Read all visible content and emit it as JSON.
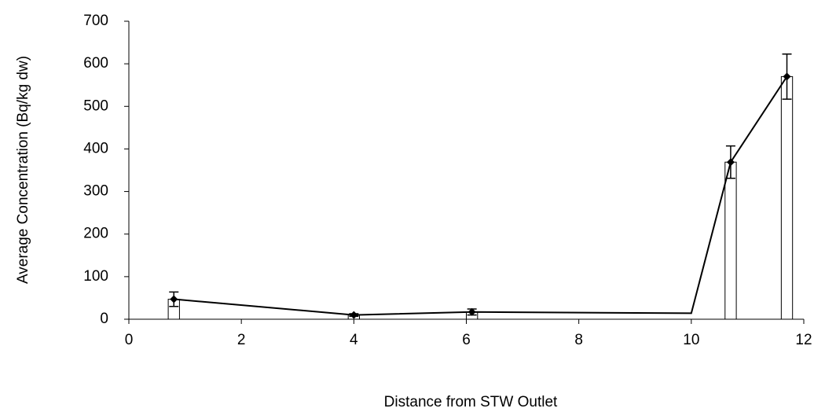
{
  "chart_data": {
    "type": "bar-line",
    "x_label": "Distance from STW Outlet",
    "y_label": "Average Concentration (Bq/kg dw)",
    "xlim": [
      0,
      12
    ],
    "xticks": [
      0,
      2,
      4,
      6,
      8,
      10,
      12
    ],
    "ylim": [
      0,
      700
    ],
    "yticks": [
      0,
      100,
      200,
      300,
      400,
      500,
      600,
      700
    ],
    "bar_width": 0.2,
    "series": [
      {
        "kind": "bar",
        "color": "#ffffff",
        "x": [
          0.8,
          4.0,
          6.1,
          10.7,
          11.7
        ],
        "values": [
          47,
          10,
          17,
          369,
          570
        ],
        "errors": [
          17,
          3,
          7,
          38,
          53
        ]
      },
      {
        "kind": "line",
        "color": "#000000",
        "x": [
          0.8,
          4.0,
          6.1,
          10.0,
          10.7,
          11.7
        ],
        "values": [
          47,
          10,
          17,
          14,
          369,
          570
        ]
      }
    ]
  }
}
